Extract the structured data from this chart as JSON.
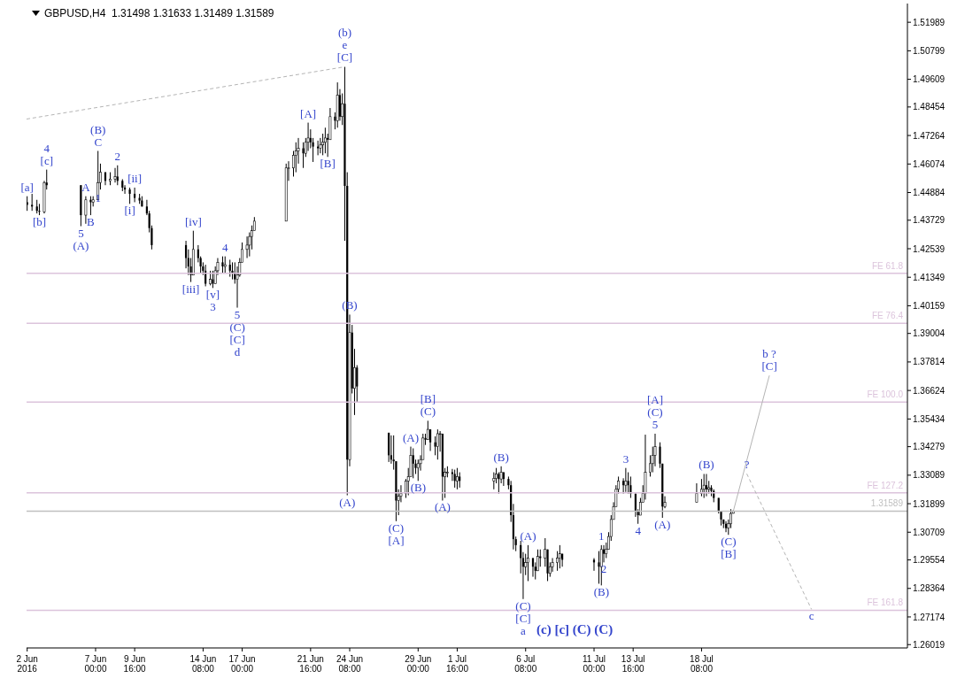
{
  "chart_data": {
    "type": "candlestick",
    "title": "GBPUSD,H4  1.31498 1.31633 1.31489 1.31589",
    "color": "#000000",
    "x": [
      "2016-06-02T08:00",
      "2016-06-02T16:00",
      "2016-06-03T00:00",
      "2016-06-03T04:00",
      "2016-06-03T12:00",
      "2016-06-03T16:00",
      "2016-06-06T00:00",
      "2016-06-06T08:00",
      "2016-06-06T16:00",
      "2016-06-06T20:00",
      "2016-06-07T04:00",
      "2016-06-07T08:00",
      "2016-06-07T16:00",
      "2016-06-08T00:00",
      "2016-06-08T08:00",
      "2016-06-08T12:00",
      "2016-06-08T20:00",
      "2016-06-09T00:00",
      "2016-06-09T08:00",
      "2016-06-09T16:00",
      "2016-06-10T00:00",
      "2016-06-10T04:00",
      "2016-06-10T12:00",
      "2016-06-10T16:00",
      "2016-06-10T20:00",
      "2016-06-13T04:00",
      "2016-06-13T08:00",
      "2016-06-13T12:00",
      "2016-06-13T16:00",
      "2016-06-14T00:00",
      "2016-06-14T04:00",
      "2016-06-14T08:00",
      "2016-06-14T12:00",
      "2016-06-14T20:00",
      "2016-06-15T00:00",
      "2016-06-15T04:00",
      "2016-06-15T08:00",
      "2016-06-15T16:00",
      "2016-06-15T20:00",
      "2016-06-16T04:00",
      "2016-06-16T08:00",
      "2016-06-16T12:00",
      "2016-06-16T16:00",
      "2016-06-16T20:00",
      "2016-06-17T00:00",
      "2016-06-17T08:00",
      "2016-06-17T12:00",
      "2016-06-17T16:00",
      "2016-06-17T20:00",
      "2016-06-20T00:00",
      "2016-06-20T04:00",
      "2016-06-20T12:00",
      "2016-06-20T16:00",
      "2016-06-20T20:00",
      "2016-06-21T04:00",
      "2016-06-21T08:00",
      "2016-06-21T12:00",
      "2016-06-21T16:00",
      "2016-06-21T20:00",
      "2016-06-22T04:00",
      "2016-06-22T08:00",
      "2016-06-22T12:00",
      "2016-06-22T16:00",
      "2016-06-22T20:00",
      "2016-06-23T00:00",
      "2016-06-23T08:00",
      "2016-06-23T12:00",
      "2016-06-23T16:00",
      "2016-06-23T20:00",
      "2016-06-24T00:00",
      "2016-06-24T04:00",
      "2016-06-24T08:00",
      "2016-06-24T12:00",
      "2016-06-24T16:00",
      "2016-06-24T20:00",
      "2016-06-27T00:00",
      "2016-06-27T04:00",
      "2016-06-27T08:00",
      "2016-06-27T12:00",
      "2016-06-27T16:00",
      "2016-06-27T20:00",
      "2016-06-28T04:00",
      "2016-06-28T08:00",
      "2016-06-28T12:00",
      "2016-06-28T16:00",
      "2016-06-28T20:00",
      "2016-06-29T00:00",
      "2016-06-29T04:00",
      "2016-06-29T08:00",
      "2016-06-29T12:00",
      "2016-06-29T16:00",
      "2016-06-29T20:00",
      "2016-06-30T04:00",
      "2016-06-30T08:00",
      "2016-06-30T12:00",
      "2016-06-30T16:00",
      "2016-06-30T20:00",
      "2016-07-01T00:00",
      "2016-07-01T08:00",
      "2016-07-01T12:00",
      "2016-07-01T16:00",
      "2016-07-01T20:00",
      "2016-07-04T04:00",
      "2016-07-04T08:00",
      "2016-07-04T12:00",
      "2016-07-04T16:00",
      "2016-07-04T20:00",
      "2016-07-05T04:00",
      "2016-07-05T08:00",
      "2016-07-05T12:00",
      "2016-07-05T16:00",
      "2016-07-06T00:00",
      "2016-07-06T04:00",
      "2016-07-06T08:00",
      "2016-07-06T12:00",
      "2016-07-06T20:00",
      "2016-07-07T00:00",
      "2016-07-07T04:00",
      "2016-07-07T08:00",
      "2016-07-07T16:00",
      "2016-07-07T20:00",
      "2016-07-08T00:00",
      "2016-07-08T04:00",
      "2016-07-08T12:00",
      "2016-07-08T16:00",
      "2016-07-08T20:00",
      "2016-07-11T00:00",
      "2016-07-11T08:00",
      "2016-07-11T12:00",
      "2016-07-11T16:00",
      "2016-07-11T20:00",
      "2016-07-12T00:00",
      "2016-07-12T04:00",
      "2016-07-12T08:00",
      "2016-07-12T12:00",
      "2016-07-12T16:00",
      "2016-07-13T00:00",
      "2016-07-13T04:00",
      "2016-07-13T08:00",
      "2016-07-13T12:00",
      "2016-07-13T20:00",
      "2016-07-14T00:00",
      "2016-07-14T04:00",
      "2016-07-14T08:00",
      "2016-07-14T12:00",
      "2016-07-14T20:00",
      "2016-07-15T00:00",
      "2016-07-15T04:00",
      "2016-07-15T12:00",
      "2016-07-15T16:00",
      "2016-07-15T20:00",
      "2016-07-18T00:00",
      "2016-07-18T08:00",
      "2016-07-18T12:00",
      "2016-07-18T16:00",
      "2016-07-18T20:00",
      "2016-07-19T00:00",
      "2016-07-19T04:00",
      "2016-07-19T12:00",
      "2016-07-19T16:00",
      "2016-07-19T20:00",
      "2016-07-20T00:00",
      "2016-07-20T04:00",
      "2016-07-20T08:00",
      "2016-07-20T12:00"
    ],
    "ohlc": [
      [
        1.4448,
        1.4473,
        1.4412,
        1.4437
      ],
      [
        1.4437,
        1.4483,
        1.4412,
        1.443
      ],
      [
        1.443,
        1.4458,
        1.4401,
        1.4412
      ],
      [
        1.4412,
        1.4441,
        1.4394,
        1.4408
      ],
      [
        1.4408,
        1.4537,
        1.4401,
        1.453
      ],
      [
        1.453,
        1.4584,
        1.4501,
        1.4519
      ],
      [
        1.4519,
        1.4519,
        1.4348,
        1.4394
      ],
      [
        1.4394,
        1.4473,
        1.4358,
        1.4458
      ],
      [
        1.4458,
        1.4473,
        1.4394,
        1.4448
      ],
      [
        1.4448,
        1.4473,
        1.443,
        1.4458
      ],
      [
        1.4458,
        1.4662,
        1.4458,
        1.453
      ],
      [
        1.453,
        1.4609,
        1.4501,
        1.4573
      ],
      [
        1.4573,
        1.4573,
        1.4519,
        1.4537
      ],
      [
        1.4537,
        1.4573,
        1.4519,
        1.4544
      ],
      [
        1.4544,
        1.4591,
        1.453,
        1.4555
      ],
      [
        1.4555,
        1.4602,
        1.4519,
        1.4537
      ],
      [
        1.4537,
        1.4544,
        1.4494,
        1.4509
      ],
      [
        1.4509,
        1.4519,
        1.4483,
        1.4501
      ],
      [
        1.4501,
        1.4509,
        1.4441,
        1.4483
      ],
      [
        1.4483,
        1.4509,
        1.4448,
        1.4466
      ],
      [
        1.4466,
        1.4483,
        1.4441,
        1.4455
      ],
      [
        1.4455,
        1.4473,
        1.443,
        1.443
      ],
      [
        1.443,
        1.4458,
        1.4394,
        1.4401
      ],
      [
        1.4401,
        1.4412,
        1.4322,
        1.434
      ],
      [
        1.434,
        1.4351,
        1.4251,
        1.4269
      ],
      [
        1.4269,
        1.4287,
        1.4172,
        1.4215
      ],
      [
        1.4215,
        1.4251,
        1.4144,
        1.418
      ],
      [
        1.418,
        1.4215,
        1.4115,
        1.4144
      ],
      [
        1.4144,
        1.4329,
        1.4144,
        1.4251
      ],
      [
        1.4251,
        1.4269,
        1.4197,
        1.4215
      ],
      [
        1.4215,
        1.4222,
        1.4151,
        1.418
      ],
      [
        1.418,
        1.4197,
        1.4144,
        1.4162
      ],
      [
        1.4162,
        1.4187,
        1.4097,
        1.4108
      ],
      [
        1.4108,
        1.4162,
        1.4101,
        1.4126
      ],
      [
        1.4126,
        1.4162,
        1.409,
        1.4108
      ],
      [
        1.4108,
        1.418,
        1.4108,
        1.4162
      ],
      [
        1.4162,
        1.4215,
        1.4144,
        1.4197
      ],
      [
        1.4197,
        1.4222,
        1.4151,
        1.418
      ],
      [
        1.418,
        1.4222,
        1.4151,
        1.4187
      ],
      [
        1.4187,
        1.4208,
        1.4137,
        1.4162
      ],
      [
        1.4162,
        1.4197,
        1.4126,
        1.4151
      ],
      [
        1.4151,
        1.4197,
        1.4108,
        1.4126
      ],
      [
        1.4126,
        1.418,
        1.4008,
        1.4144
      ],
      [
        1.4144,
        1.4215,
        1.4137,
        1.4197
      ],
      [
        1.4197,
        1.428,
        1.4197,
        1.4251
      ],
      [
        1.4251,
        1.4305,
        1.4215,
        1.4269
      ],
      [
        1.4269,
        1.4322,
        1.4222,
        1.4305
      ],
      [
        1.4305,
        1.4351,
        1.4251,
        1.4329
      ],
      [
        1.4329,
        1.4386,
        1.4329,
        1.4369
      ],
      [
        1.4369,
        1.4609,
        1.4369,
        1.4591
      ],
      [
        1.4591,
        1.4619,
        1.4537,
        1.4591
      ],
      [
        1.4591,
        1.4662,
        1.4555,
        1.4644
      ],
      [
        1.4644,
        1.4698,
        1.4573,
        1.4662
      ],
      [
        1.4662,
        1.4716,
        1.4609,
        1.4673
      ],
      [
        1.4673,
        1.4698,
        1.4591,
        1.4652
      ],
      [
        1.4652,
        1.4716,
        1.4637,
        1.4698
      ],
      [
        1.4698,
        1.478,
        1.4662,
        1.4716
      ],
      [
        1.4716,
        1.4752,
        1.4673,
        1.4698
      ],
      [
        1.4698,
        1.4716,
        1.4616,
        1.468
      ],
      [
        1.468,
        1.4705,
        1.4644,
        1.4673
      ],
      [
        1.4673,
        1.4716,
        1.4652,
        1.4687
      ],
      [
        1.4687,
        1.4734,
        1.4644,
        1.4698
      ],
      [
        1.4698,
        1.4759,
        1.4652,
        1.4716
      ],
      [
        1.4716,
        1.4734,
        1.4637,
        1.4709
      ],
      [
        1.4709,
        1.4841,
        1.4709,
        1.4805
      ],
      [
        1.4805,
        1.4823,
        1.4752,
        1.4788
      ],
      [
        1.4788,
        1.4948,
        1.4759,
        1.4895
      ],
      [
        1.4895,
        1.492,
        1.4788,
        1.4805
      ],
      [
        1.4805,
        1.4902,
        1.477,
        1.4859
      ],
      [
        1.4859,
        1.5013,
        1.4287,
        1.4516
      ],
      [
        1.4516,
        1.4573,
        1.3225,
        1.3374
      ],
      [
        1.3374,
        1.3979,
        1.3346,
        1.3904
      ],
      [
        1.3904,
        1.3936,
        1.365,
        1.3671
      ],
      [
        1.3671,
        1.3836,
        1.356,
        1.3758
      ],
      [
        1.3758,
        1.3768,
        1.3614,
        1.3679
      ],
      [
        1.3486,
        1.3486,
        1.3364,
        1.3392
      ],
      [
        1.3392,
        1.3475,
        1.3357,
        1.3374
      ],
      [
        1.3374,
        1.3475,
        1.3332,
        1.3367
      ],
      [
        1.3367,
        1.3367,
        1.3117,
        1.3203
      ],
      [
        1.3203,
        1.325,
        1.3142,
        1.3221
      ],
      [
        1.3221,
        1.3267,
        1.3196,
        1.3232
      ],
      [
        1.3232,
        1.3293,
        1.3214,
        1.3285
      ],
      [
        1.3285,
        1.3339,
        1.3225,
        1.3303
      ],
      [
        1.3303,
        1.3428,
        1.3303,
        1.3392
      ],
      [
        1.3392,
        1.3421,
        1.3296,
        1.3357
      ],
      [
        1.3357,
        1.3374,
        1.3314,
        1.3339
      ],
      [
        1.3339,
        1.3374,
        1.3285,
        1.3357
      ],
      [
        1.3357,
        1.3392,
        1.3328,
        1.3374
      ],
      [
        1.3374,
        1.3482,
        1.3374,
        1.3464
      ],
      [
        1.3464,
        1.3482,
        1.3435,
        1.3457
      ],
      [
        1.3457,
        1.3536,
        1.3457,
        1.35
      ],
      [
        1.35,
        1.35,
        1.341,
        1.3446
      ],
      [
        1.3446,
        1.3471,
        1.3392,
        1.3428
      ],
      [
        1.3428,
        1.35,
        1.3374,
        1.3482
      ],
      [
        1.3482,
        1.3493,
        1.3407,
        1.3482
      ],
      [
        1.3482,
        1.3482,
        1.3203,
        1.3303
      ],
      [
        1.3303,
        1.3339,
        1.3214,
        1.3321
      ],
      [
        1.3321,
        1.3346,
        1.33,
        1.3321
      ],
      [
        1.3321,
        1.3335,
        1.3285,
        1.3314
      ],
      [
        1.3314,
        1.3332,
        1.3257,
        1.3285
      ],
      [
        1.3285,
        1.3339,
        1.325,
        1.3303
      ],
      [
        1.3303,
        1.3321,
        1.3257,
        1.3285
      ],
      [
        1.3285,
        1.3321,
        1.325,
        1.3296
      ],
      [
        1.3296,
        1.3339,
        1.3275,
        1.3314
      ],
      [
        1.3314,
        1.3321,
        1.3232,
        1.3293
      ],
      [
        1.3293,
        1.3346,
        1.3275,
        1.3321
      ],
      [
        1.3321,
        1.3321,
        1.3264,
        1.3293
      ],
      [
        1.3293,
        1.3303,
        1.325,
        1.3267
      ],
      [
        1.3267,
        1.3285,
        1.3114,
        1.3142
      ],
      [
        1.3142,
        1.3189,
        1.2999,
        1.3042
      ],
      [
        1.3042,
        1.3053,
        1.2992,
        1.3017
      ],
      [
        1.3017,
        1.3035,
        1.2899,
        1.2963
      ],
      [
        1.2963,
        1.2988,
        1.2792,
        1.2927
      ],
      [
        1.2927,
        1.2981,
        1.2892,
        1.2945
      ],
      [
        1.2945,
        1.3017,
        1.2867,
        1.2963
      ],
      [
        1.2963,
        1.2963,
        1.2885,
        1.2927
      ],
      [
        1.2927,
        1.2945,
        1.2874,
        1.291
      ],
      [
        1.291,
        1.2999,
        1.291,
        1.297
      ],
      [
        1.297,
        1.2999,
        1.2927,
        1.2963
      ],
      [
        1.2963,
        1.3046,
        1.2927,
        1.2999
      ],
      [
        1.2999,
        1.2999,
        1.2867,
        1.2899
      ],
      [
        1.2899,
        1.2945,
        1.2885,
        1.2927
      ],
      [
        1.2927,
        1.2963,
        1.2906,
        1.2945
      ],
      [
        1.2945,
        1.2992,
        1.291,
        1.2963
      ],
      [
        1.2963,
        1.3017,
        1.292,
        1.2981
      ],
      [
        1.2981,
        1.2981,
        1.2927,
        1.2956
      ],
      [
        1.2956,
        1.2963,
        1.291,
        1.2945
      ],
      [
        1.2945,
        1.2992,
        1.2856,
        1.2927
      ],
      [
        1.2927,
        1.3017,
        1.2849,
        1.2999
      ],
      [
        1.2999,
        1.3017,
        1.2945,
        1.2981
      ],
      [
        1.2981,
        1.3028,
        1.2963,
        1.2999
      ],
      [
        1.2999,
        1.3071,
        1.2999,
        1.3053
      ],
      [
        1.3053,
        1.3142,
        1.3035,
        1.3124
      ],
      [
        1.3124,
        1.3196,
        1.3124,
        1.3178
      ],
      [
        1.3178,
        1.3267,
        1.3178,
        1.325
      ],
      [
        1.325,
        1.3303,
        1.3232,
        1.3285
      ],
      [
        1.3285,
        1.3296,
        1.3232,
        1.3267
      ],
      [
        1.3267,
        1.3339,
        1.3239,
        1.3285
      ],
      [
        1.3285,
        1.3321,
        1.3232,
        1.3267
      ],
      [
        1.3267,
        1.3303,
        1.3214,
        1.3232
      ],
      [
        1.3232,
        1.3232,
        1.3135,
        1.316
      ],
      [
        1.316,
        1.3167,
        1.3106,
        1.3142
      ],
      [
        1.3142,
        1.3214,
        1.3142,
        1.3196
      ],
      [
        1.3196,
        1.3267,
        1.3196,
        1.3232
      ],
      [
        1.3232,
        1.3478,
        1.3207,
        1.3321
      ],
      [
        1.3321,
        1.3392,
        1.3303,
        1.3357
      ],
      [
        1.3357,
        1.3428,
        1.3321,
        1.3392
      ],
      [
        1.3392,
        1.3482,
        1.3346,
        1.3428
      ],
      [
        1.3428,
        1.3446,
        1.3339,
        1.3357
      ],
      [
        1.3357,
        1.3357,
        1.3131,
        1.3178
      ],
      [
        1.3178,
        1.3221,
        1.3171,
        1.3196
      ],
      [
        1.3196,
        1.3275,
        1.3196,
        1.3232
      ],
      [
        1.3232,
        1.3293,
        1.3221,
        1.325
      ],
      [
        1.325,
        1.3314,
        1.3214,
        1.3267
      ],
      [
        1.3267,
        1.3314,
        1.3221,
        1.325
      ],
      [
        1.325,
        1.3285,
        1.3232,
        1.3257
      ],
      [
        1.3257,
        1.3267,
        1.3221,
        1.3243
      ],
      [
        1.3243,
        1.325,
        1.3196,
        1.3214
      ],
      [
        1.3214,
        1.3214,
        1.3149,
        1.316
      ],
      [
        1.316,
        1.316,
        1.3099,
        1.3124
      ],
      [
        1.3124,
        1.3124,
        1.3088,
        1.3106
      ],
      [
        1.3106,
        1.3117,
        1.3071,
        1.3088
      ],
      [
        1.3088,
        1.3124,
        1.306,
        1.3106
      ],
      [
        1.3106,
        1.3167,
        1.3088,
        1.3149
      ],
      [
        1.31498,
        1.31633,
        1.31489,
        1.31589
      ]
    ],
    "series": [
      {
        "type": "line",
        "color": "#b4b4b4",
        "line_style": "dashed",
        "x": [
          "2016-06-02T07:00",
          "2016-06-24T00:00"
        ],
        "values": [
          1.4795,
          1.5013
        ]
      },
      {
        "type": "line",
        "color": "#b4b4b4",
        "line_style": "solid",
        "x": [
          "2016-07-20T12:00",
          "2016-07-22T23:00"
        ],
        "values": [
          1.3159,
          1.3725
        ]
      },
      {
        "type": "line",
        "color": "#b4b4b4",
        "line_style": "dashed",
        "x": [
          "2016-07-21T10:00",
          "2016-07-25T20:00"
        ],
        "values": [
          1.3315,
          1.2749
        ]
      }
    ],
    "marker": "none",
    "grid": false,
    "xlim": [
      "2016-06-02T07:00",
      "2016-08-01T09:00"
    ],
    "xticks": [
      {
        "value": "2016-06-02T08:00",
        "label": "2 Jun 2016"
      },
      {
        "value": "2016-06-07T00:00",
        "label": "7 Jun 00:00"
      },
      {
        "value": "2016-06-09T16:00",
        "label": "9 Jun 16:00"
      },
      {
        "value": "2016-06-14T08:00",
        "label": "14 Jun 08:00"
      },
      {
        "value": "2016-06-17T00:00",
        "label": "17 Jun 00:00"
      },
      {
        "value": "2016-06-21T16:00",
        "label": "21 Jun 16:00"
      },
      {
        "value": "2016-06-24T08:00",
        "label": "24 Jun 08:00"
      },
      {
        "value": "2016-06-29T00:00",
        "label": "29 Jun 00:00"
      },
      {
        "value": "2016-07-01T16:00",
        "label": "1 Jul 16:00"
      },
      {
        "value": "2016-07-06T08:00",
        "label": "6 Jul 08:00"
      },
      {
        "value": "2016-07-11T00:00",
        "label": "11 Jul 00:00"
      },
      {
        "value": "2016-07-13T16:00",
        "label": "13 Jul 16:00"
      },
      {
        "value": "2016-07-18T08:00",
        "label": "18 Jul 08:00"
      }
    ],
    "ylim": [
      1.2588,
      1.5277
    ],
    "yticks": [
      1.26019,
      1.27174,
      1.28364,
      1.29554,
      1.30709,
      1.31899,
      1.33089,
      1.34279,
      1.35434,
      1.36624,
      1.37814,
      1.39004,
      1.40159,
      1.41349,
      1.42539,
      1.43729,
      1.44884,
      1.46074,
      1.47264,
      1.48454,
      1.49609,
      1.50799,
      1.51989
    ],
    "ref_lines": [
      {
        "axis": "y",
        "value": 1.4151,
        "label": "FE 61.8",
        "color": "#dcc4dc"
      },
      {
        "axis": "y",
        "value": 1.3943,
        "label": "FE 76.4",
        "color": "#dcc4dc"
      },
      {
        "axis": "y",
        "value": 1.3614,
        "label": "FE 100.0",
        "color": "#dcc4dc"
      },
      {
        "axis": "y",
        "value": 1.3235,
        "label": "FE 127.2",
        "color": "#dcc4dc"
      },
      {
        "axis": "y",
        "value": 1.2745,
        "label": "FE 161.8",
        "color": "#dcc4dc"
      },
      {
        "axis": "y",
        "value": 1.31589,
        "label": "1.31589",
        "color": "#c0c0c0"
      }
    ],
    "annotations": [
      {
        "text": "[a]",
        "x": "2016-06-02T08:00",
        "y": 1.4473
      },
      {
        "text": "4\n[c]",
        "x": "2016-06-03T16:00",
        "y": 1.4584
      },
      {
        "text": "[b]",
        "x": "2016-06-03T04:00",
        "y": 1.4394
      },
      {
        "text": "5\n(A)",
        "x": "2016-06-06T00:00",
        "y": 1.4348
      },
      {
        "text": "A",
        "x": "2016-06-06T08:00",
        "y": 1.4473
      },
      {
        "text": "B",
        "x": "2016-06-06T16:00",
        "y": 1.4394
      },
      {
        "text": "(B)\nC",
        "x": "2016-06-07T04:00",
        "y": 1.4662
      },
      {
        "text": "1",
        "x": "2016-06-07T04:00",
        "y": 1.4494
      },
      {
        "text": "2",
        "x": "2016-06-08T12:00",
        "y": 1.4602
      },
      {
        "text": "[ii]",
        "x": "2016-06-09T16:00",
        "y": 1.4509
      },
      {
        "text": "[i]",
        "x": "2016-06-09T08:00",
        "y": 1.4441
      },
      {
        "text": "[iv]",
        "x": "2016-06-13T16:00",
        "y": 1.4329
      },
      {
        "text": "[iii]",
        "x": "2016-06-13T12:00",
        "y": 1.4115
      },
      {
        "text": "[v]\n3",
        "x": "2016-06-15T00:00",
        "y": 1.409
      },
      {
        "text": "4",
        "x": "2016-06-15T20:00",
        "y": 1.4222
      },
      {
        "text": "5\n(C)\n[C]\nd",
        "x": "2016-06-16T16:00",
        "y": 1.4008
      },
      {
        "text": "[A]",
        "x": "2016-06-21T12:00",
        "y": 1.478
      },
      {
        "text": "[B]",
        "x": "2016-06-22T20:00",
        "y": 1.4637
      },
      {
        "text": "(b)\ne\n[C]",
        "x": "2016-06-24T00:00",
        "y": 1.5013
      },
      {
        "text": "(B)",
        "x": "2016-06-24T08:00",
        "y": 1.3979
      },
      {
        "text": "(A)",
        "x": "2016-06-24T04:00",
        "y": 1.3225
      },
      {
        "text": "(C)\n[A]",
        "x": "2016-06-27T12:00",
        "y": 1.3117
      },
      {
        "text": "(A)",
        "x": "2016-06-28T12:00",
        "y": 1.3428
      },
      {
        "text": "(B)",
        "x": "2016-06-29T00:00",
        "y": 1.3285
      },
      {
        "text": "[B]\n(C)",
        "x": "2016-06-29T16:00",
        "y": 1.3536
      },
      {
        "text": "(A)",
        "x": "2016-06-30T16:00",
        "y": 1.3203
      },
      {
        "text": "(B)",
        "x": "2016-07-04T16:00",
        "y": 1.3346
      },
      {
        "text": "(A)",
        "x": "2016-07-06T12:00",
        "y": 1.3017
      },
      {
        "text": "(C)\n[C]\na",
        "x": "2016-07-06T04:00",
        "y": 1.2792
      },
      "(c) [c] (C) (C)",
      {
        "text": "1",
        "x": "2016-07-11T12:00",
        "y": 1.3017
      },
      {
        "text": "(B)",
        "x": "2016-07-11T12:00",
        "y": 1.2849
      },
      {
        "text": "2",
        "x": "2016-07-11T16:00",
        "y": 1.2945
      },
      {
        "text": "3",
        "x": "2016-07-13T04:00",
        "y": 1.3339
      },
      {
        "text": "4",
        "x": "2016-07-14T00:00",
        "y": 1.3106
      },
      {
        "text": "[A]\n(C)\n5",
        "x": "2016-07-15T04:00",
        "y": 1.3482
      },
      {
        "text": "(A)",
        "x": "2016-07-15T16:00",
        "y": 1.3131
      },
      {
        "text": "(B)",
        "x": "2016-07-18T16:00",
        "y": 1.3314
      },
      {
        "text": "(C)\n[B]",
        "x": "2016-07-20T04:00",
        "y": 1.306
      },
      {
        "text": "b ?\n[C]",
        "x": "2016-07-22T23:00",
        "y": 1.3725
      },
      {
        "text": "?",
        "x": "2016-07-21T10:00",
        "y": 1.3315
      },
      {
        "text": "c",
        "x": "2016-07-25T20:00",
        "y": 1.2749
      }
    ]
  }
}
